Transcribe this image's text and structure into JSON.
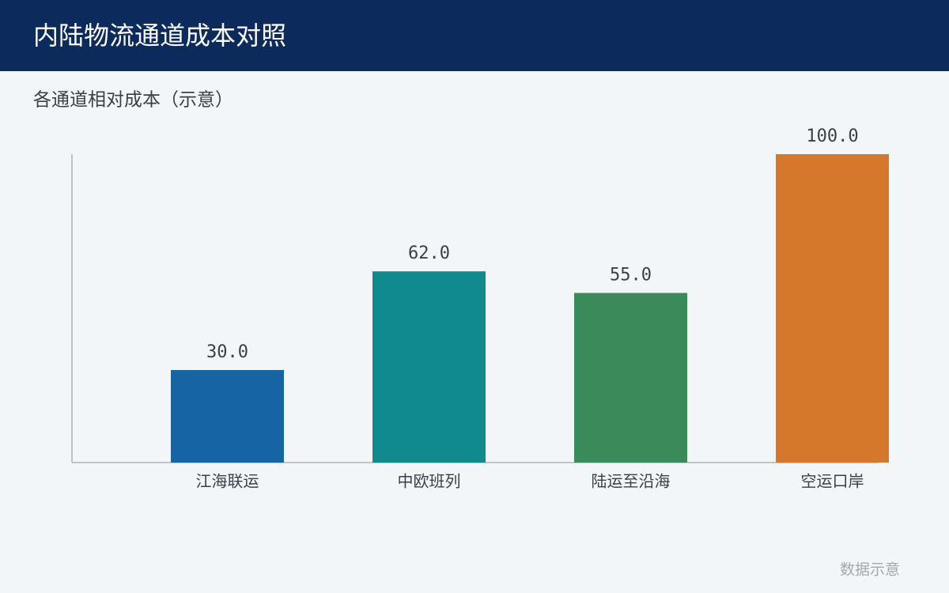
{
  "chart_data": {
    "type": "bar",
    "title": "内陆物流通道成本对照",
    "subtitle": "各通道相对成本（示意）",
    "categories": [
      "江海联运",
      "中欧班列",
      "陆运至沿海",
      "空运口岸"
    ],
    "values": [
      30,
      62,
      55,
      100
    ],
    "value_labels": [
      "30.0",
      "62.0",
      "55.0",
      "100.0"
    ],
    "colors": [
      "#1764a5",
      "#118a8e",
      "#3b8b5a",
      "#d6782b"
    ],
    "ylim": [
      0,
      100
    ],
    "note": "数据示意"
  }
}
